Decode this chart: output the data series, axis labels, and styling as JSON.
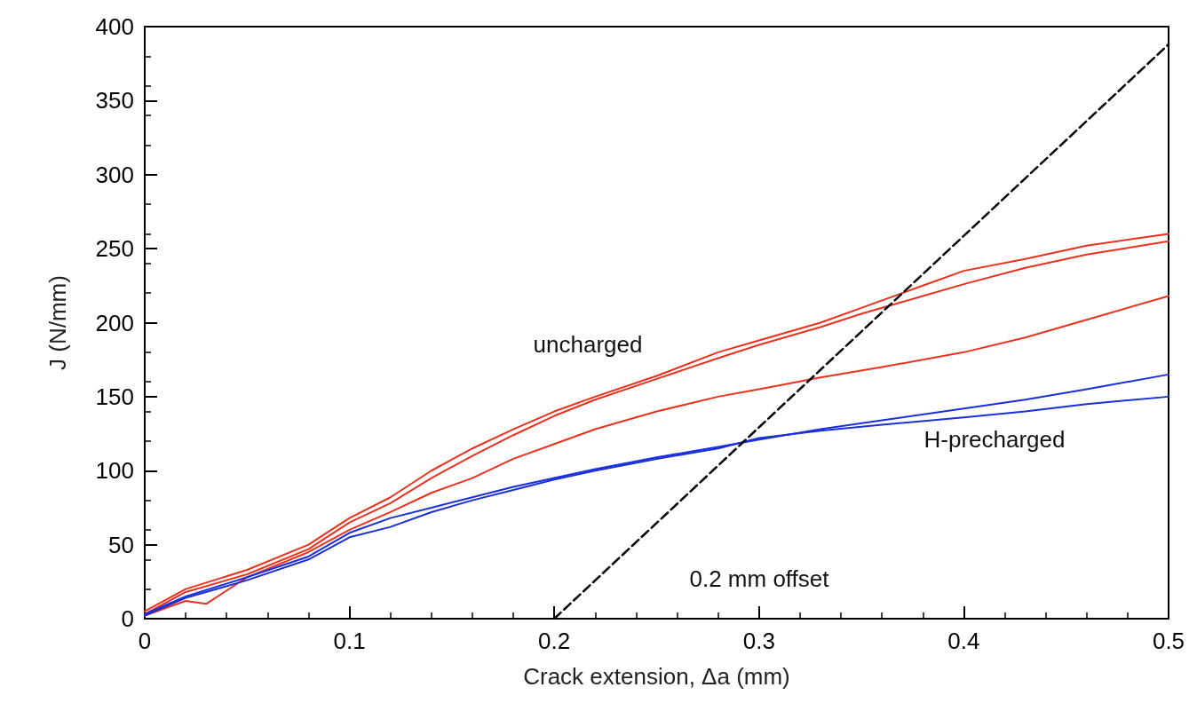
{
  "chart_data": {
    "type": "line",
    "xlabel": "Crack extension, Δa (mm)",
    "ylabel": "J (N/mm)",
    "xlim": [
      0,
      0.5
    ],
    "xticks": [
      0,
      0.1,
      0.2,
      0.3,
      0.4,
      0.5
    ],
    "ylim": [
      0,
      400
    ],
    "yticks": [
      0,
      50,
      100,
      150,
      200,
      250,
      300,
      350,
      400
    ],
    "grid": false,
    "marker": "none",
    "line_style": "solid",
    "annotations": [
      "uncharged",
      "H-precharged",
      "0.2 mm offset"
    ],
    "series": [
      {
        "color": "#e8321e",
        "x": [
          0,
          0.02,
          0.05,
          0.08,
          0.1,
          0.12,
          0.14,
          0.16,
          0.18,
          0.2,
          0.22,
          0.25,
          0.28,
          0.3,
          0.33,
          0.35,
          0.38,
          0.4,
          0.43,
          0.46,
          0.5
        ],
        "values": [
          5,
          20,
          33,
          50,
          68,
          82,
          100,
          115,
          128,
          140,
          150,
          164,
          180,
          188,
          200,
          210,
          225,
          235,
          243,
          252,
          260
        ]
      },
      {
        "color": "#e8321e",
        "x": [
          0,
          0.02,
          0.05,
          0.08,
          0.1,
          0.12,
          0.14,
          0.16,
          0.18,
          0.2,
          0.22,
          0.25,
          0.28,
          0.3,
          0.33,
          0.35,
          0.38,
          0.4,
          0.43,
          0.46,
          0.5
        ],
        "values": [
          3,
          18,
          30,
          47,
          65,
          78,
          95,
          110,
          124,
          137,
          148,
          162,
          176,
          185,
          197,
          206,
          218,
          226,
          237,
          246,
          255
        ]
      },
      {
        "color": "#e8321e",
        "x": [
          0,
          0.02,
          0.03,
          0.05,
          0.08,
          0.1,
          0.12,
          0.14,
          0.16,
          0.18,
          0.2,
          0.22,
          0.25,
          0.28,
          0.3,
          0.33,
          0.36,
          0.4,
          0.43,
          0.46,
          0.5
        ],
        "values": [
          2,
          12,
          10,
          28,
          45,
          60,
          72,
          85,
          95,
          108,
          118,
          128,
          140,
          150,
          155,
          163,
          170,
          180,
          190,
          202,
          218
        ]
      },
      {
        "color": "#1a2fd6",
        "x": [
          0,
          0.02,
          0.05,
          0.08,
          0.1,
          0.12,
          0.14,
          0.16,
          0.18,
          0.2,
          0.22,
          0.25,
          0.28,
          0.3,
          0.33,
          0.36,
          0.4,
          0.43,
          0.46,
          0.5
        ],
        "values": [
          3,
          15,
          28,
          42,
          58,
          68,
          75,
          82,
          89,
          95,
          101,
          109,
          116,
          121,
          128,
          134,
          142,
          148,
          155,
          165
        ]
      },
      {
        "color": "#1a2fd6",
        "x": [
          0,
          0.02,
          0.05,
          0.08,
          0.1,
          0.12,
          0.14,
          0.16,
          0.18,
          0.2,
          0.22,
          0.25,
          0.28,
          0.3,
          0.33,
          0.36,
          0.4,
          0.43,
          0.46,
          0.5
        ],
        "values": [
          2,
          14,
          26,
          40,
          55,
          62,
          72,
          80,
          87,
          94,
          100,
          108,
          115,
          122,
          127,
          131,
          136,
          140,
          145,
          150
        ]
      },
      {
        "type": "line",
        "color": "#000000",
        "line_style": "dashed",
        "x": [
          0.2,
          0.5
        ],
        "values": [
          0,
          388
        ]
      }
    ]
  }
}
